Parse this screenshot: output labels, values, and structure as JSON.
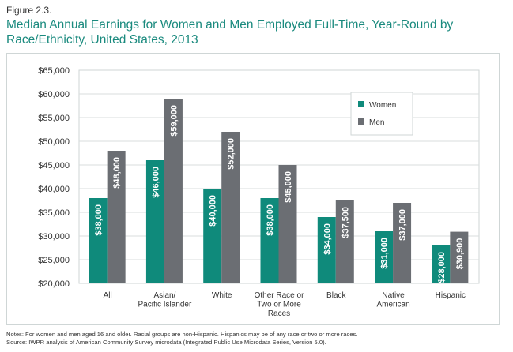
{
  "figure_label": "Figure 2.3.",
  "title": "Median Annual Earnings for Women and Men Employed Full-Time, Year-Round by Race/Ethnicity, United States, 2013",
  "notes": {
    "line1": "Notes: For women and men aged 16 and older. Racial groups are non-Hispanic. Hispanics may be of any race or two or more races.",
    "line2": "Source: IWPR analysis of American Community Survey microdata (Integrated Public Use Microdata Series, Version 5.0)."
  },
  "colors": {
    "women": "#0f8a7b",
    "men": "#6b6e73"
  },
  "chart_data": {
    "type": "bar",
    "title": "Median Annual Earnings for Women and Men Employed Full-Time, Year-Round by Race/Ethnicity, United States, 2013",
    "categories": [
      [
        "All"
      ],
      [
        "Asian/",
        "Pacific Islander"
      ],
      [
        "White"
      ],
      [
        "Other Race or",
        "Two or More",
        "Races"
      ],
      [
        "Black"
      ],
      [
        "Native",
        "American"
      ],
      [
        "Hispanic"
      ]
    ],
    "series": [
      {
        "name": "Women",
        "values": [
          38000,
          46000,
          40000,
          38000,
          34000,
          31000,
          28000
        ],
        "labels": [
          "$38,000",
          "$46,000",
          "$40,000",
          "$38,000",
          "$34,000",
          "$31,000",
          "$28,000"
        ]
      },
      {
        "name": "Men",
        "values": [
          48000,
          59000,
          52000,
          45000,
          37500,
          37000,
          30900
        ],
        "labels": [
          "$48,000",
          "$59,000",
          "$52,000",
          "$45,000",
          "$37,500",
          "$37,000",
          "$30,900"
        ]
      }
    ],
    "yticks": [
      20000,
      25000,
      30000,
      35000,
      40000,
      45000,
      50000,
      55000,
      60000,
      65000
    ],
    "ytick_labels": [
      "$20,000",
      "$25,000",
      "$30,000",
      "$35,000",
      "$40,000",
      "$45,000",
      "$50,000",
      "$55,000",
      "$60,000",
      "$65,000"
    ],
    "ylim": [
      20000,
      65000
    ],
    "grid": true,
    "legend_position": "top-right",
    "xlabel": "",
    "ylabel": ""
  }
}
